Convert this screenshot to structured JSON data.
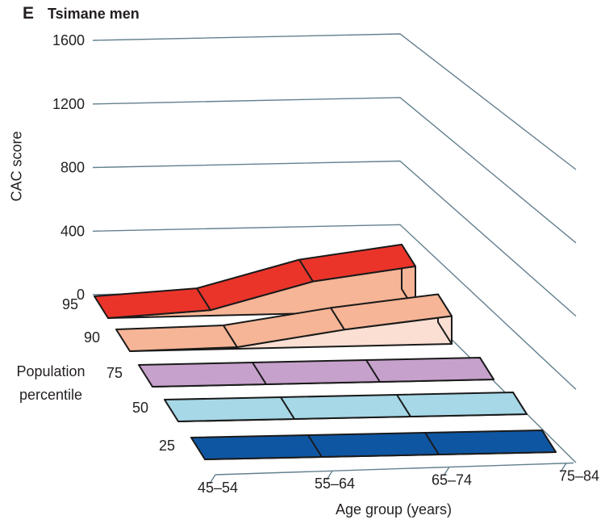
{
  "panel": {
    "label": "E",
    "title": "Tsimane men"
  },
  "y_axis": {
    "label": "CAC score"
  },
  "x_axis": {
    "label": "Age group (years)"
  },
  "depth_axis": {
    "label_line1": "Population",
    "label_line2": "percentile"
  },
  "palette": {
    "grid": "#64808f",
    "outline": "#1a1a1a",
    "text": "#231f20",
    "background": "#ffffff"
  },
  "chart_data": {
    "type": "area",
    "variant": "3d-ribbon",
    "title": "E Tsimane men",
    "xlabel": "Age group (years)",
    "ylabel": "CAC score",
    "zlabel": "Population percentile",
    "categories": [
      "45–54",
      "55–64",
      "65–74",
      "75–84"
    ],
    "ylim": [
      0,
      1600
    ],
    "y_ticks": [
      0,
      400,
      800,
      1200,
      1600
    ],
    "grid": true,
    "legend": false,
    "series": [
      {
        "name": "95",
        "values": [
          0,
          35,
          200,
          280
        ],
        "top_color": "#ea342a",
        "side_color": "#f6b596"
      },
      {
        "name": "90",
        "values": [
          0,
          10,
          105,
          175
        ],
        "top_color": "#f6b596",
        "side_color": "#fbdfd3"
      },
      {
        "name": "75",
        "values": [
          0,
          0,
          0,
          0
        ],
        "top_color": "#c6a1cb",
        "side_color": "#ddc6e0"
      },
      {
        "name": "50",
        "values": [
          0,
          0,
          0,
          0
        ],
        "top_color": "#a6d8e7",
        "side_color": "#d3ecf4"
      },
      {
        "name": "25",
        "values": [
          0,
          0,
          0,
          0
        ],
        "top_color": "#0f56a2",
        "side_color": "#6f9fcd"
      }
    ]
  }
}
